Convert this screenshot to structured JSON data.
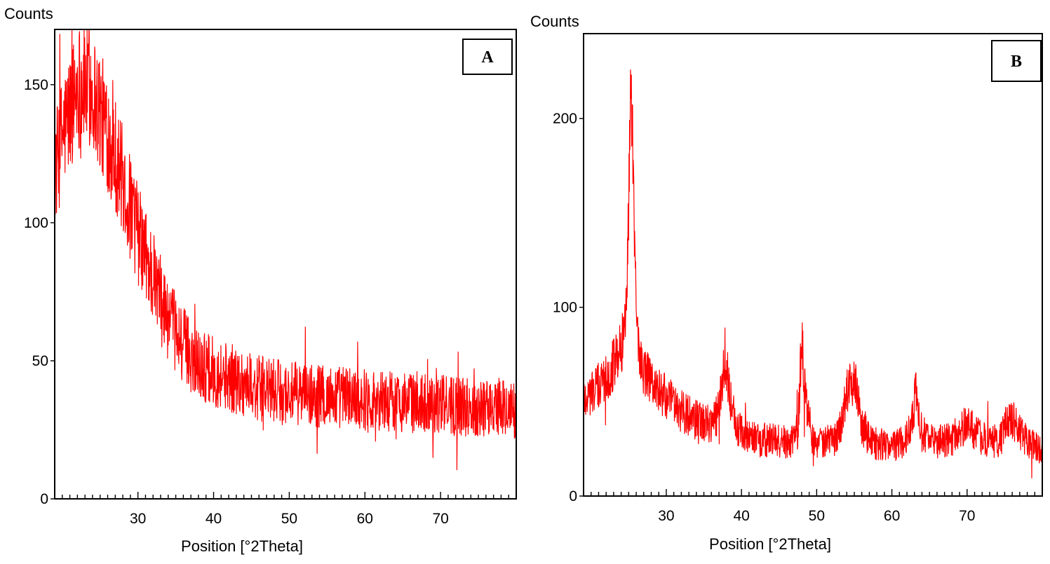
{
  "chart_data": [
    {
      "type": "line",
      "panel_label": "A",
      "ylabel": "Counts",
      "xlabel": "Position [°2Theta]",
      "xlim": [
        19,
        80
      ],
      "ylim": [
        0,
        170
      ],
      "xticks": [
        30,
        40,
        50,
        60,
        70
      ],
      "yticks": [
        0,
        50,
        100,
        150
      ],
      "grid": false,
      "line_color": "#ff0000",
      "series": [
        {
          "x": [
            19,
            20,
            21,
            22,
            23,
            24,
            25,
            26,
            27,
            28,
            29,
            30,
            31,
            32,
            33,
            34,
            35,
            36,
            37,
            38,
            40,
            42,
            44,
            46,
            48,
            50,
            52,
            54,
            56,
            58,
            60,
            62,
            64,
            66,
            68,
            70,
            72,
            74,
            76,
            78,
            80
          ],
          "values": [
            118,
            132,
            140,
            150,
            150,
            148,
            140,
            133,
            125,
            115,
            105,
            96,
            88,
            80,
            72,
            65,
            60,
            56,
            52,
            49,
            46,
            44,
            42,
            40,
            39,
            38,
            38,
            37,
            37,
            37,
            36,
            36,
            35,
            35,
            35,
            34,
            34,
            33,
            33,
            33,
            32
          ]
        }
      ]
    },
    {
      "type": "line",
      "panel_label": "B",
      "ylabel": "Counts",
      "xlabel": "Position [°2Theta]",
      "xlim": [
        19,
        80
      ],
      "ylim": [
        0,
        245
      ],
      "xticks": [
        30,
        40,
        50,
        60,
        70
      ],
      "yticks": [
        0,
        100,
        200
      ],
      "grid": false,
      "line_color": "#ff0000",
      "series": [
        {
          "x": [
            19,
            20,
            21,
            22,
            23,
            24,
            24.6,
            25,
            25.3,
            25.6,
            26,
            26.5,
            27,
            28,
            30,
            32,
            34,
            36,
            37,
            37.8,
            38.5,
            39.5,
            41,
            43,
            45,
            46.5,
            47.5,
            48,
            48.6,
            49.5,
            51,
            52.5,
            53.5,
            54.3,
            55.2,
            56,
            57.5,
            59,
            61,
            62.5,
            63.2,
            64,
            66,
            68,
            69,
            70,
            71,
            73,
            74.5,
            75.5,
            76.5,
            78,
            80
          ],
          "values": [
            52,
            55,
            58,
            63,
            70,
            78,
            95,
            150,
            240,
            170,
            100,
            72,
            66,
            60,
            52,
            45,
            40,
            38,
            45,
            75,
            52,
            35,
            32,
            30,
            29,
            29,
            35,
            82,
            50,
            30,
            28,
            30,
            42,
            62,
            58,
            36,
            28,
            27,
            27,
            35,
            55,
            33,
            28,
            30,
            35,
            38,
            34,
            28,
            30,
            42,
            38,
            28,
            25
          ]
        }
      ]
    }
  ]
}
